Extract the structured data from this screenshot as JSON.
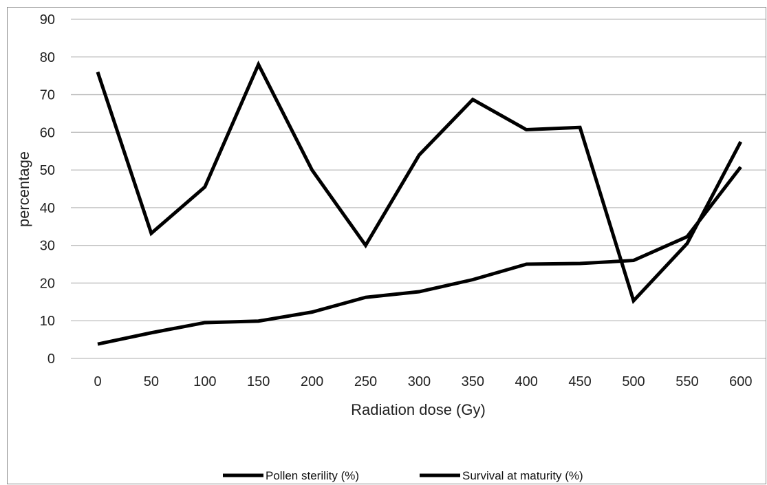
{
  "chart_data": {
    "type": "line",
    "xlabel": "Radiation dose (Gy)",
    "ylabel": "percentage",
    "ylim": [
      0,
      90
    ],
    "yticks": [
      0,
      10,
      20,
      30,
      40,
      50,
      60,
      70,
      80,
      90
    ],
    "categories": [
      "0",
      "50",
      "100",
      "150",
      "200",
      "250",
      "300",
      "350",
      "400",
      "450",
      "500",
      "550",
      "600"
    ],
    "grid": true,
    "legend_position": "bottom",
    "series": [
      {
        "name": "Pollen sterility (%)",
        "color": "#000000",
        "values": [
          3.8,
          6.8,
          9.5,
          9.9,
          12.3,
          16.2,
          17.7,
          20.9,
          25.0,
          25.2,
          26.0,
          32.3,
          50.8
        ]
      },
      {
        "name": "Survival at maturity (%)",
        "color": "#000000",
        "values": [
          76.0,
          33.2,
          45.5,
          78.0,
          50.0,
          30.0,
          54.0,
          68.7,
          60.7,
          61.3,
          15.3,
          30.5,
          57.5
        ]
      }
    ]
  }
}
